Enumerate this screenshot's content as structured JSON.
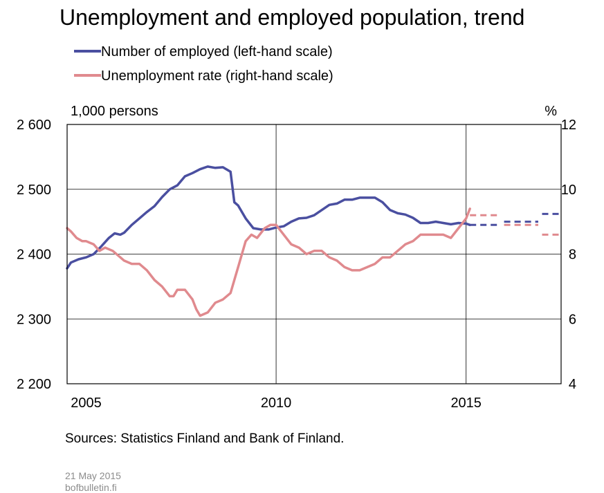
{
  "chart_data": {
    "type": "line",
    "title": "Unemployment and employed population, trend",
    "left_axis": {
      "unit": "1,000 persons",
      "ylim": [
        2200,
        2600
      ],
      "ticks": [
        "2 200",
        "2 300",
        "2 400",
        "2 500",
        "2 600"
      ],
      "tick_values": [
        2200,
        2300,
        2400,
        2500,
        2600
      ]
    },
    "right_axis": {
      "unit": "%",
      "ylim": [
        4,
        12
      ],
      "ticks": [
        "4",
        "6",
        "8",
        "10",
        "12"
      ],
      "tick_values": [
        4,
        6,
        8,
        10,
        12
      ]
    },
    "x_axis": {
      "range": [
        2004.5,
        2017.5
      ],
      "tick_labels": [
        "2005",
        "2010",
        "2015"
      ],
      "tick_values": [
        2005,
        2010,
        2015
      ],
      "gridlines_at": [
        2010,
        2015
      ]
    },
    "grid": true,
    "legend_placement": "top-left",
    "series": [
      {
        "name": "Number of employed (left-hand scale)",
        "axis": "left",
        "color": "#4a4fa0",
        "points": [
          [
            2004.5,
            2378
          ],
          [
            2004.6,
            2387
          ],
          [
            2004.8,
            2392
          ],
          [
            2005.0,
            2395
          ],
          [
            2005.2,
            2400
          ],
          [
            2005.4,
            2412
          ],
          [
            2005.6,
            2425
          ],
          [
            2005.75,
            2432
          ],
          [
            2005.9,
            2430
          ],
          [
            2006.0,
            2433
          ],
          [
            2006.2,
            2445
          ],
          [
            2006.4,
            2455
          ],
          [
            2006.6,
            2465
          ],
          [
            2006.8,
            2474
          ],
          [
            2007.0,
            2488
          ],
          [
            2007.2,
            2500
          ],
          [
            2007.4,
            2506
          ],
          [
            2007.6,
            2520
          ],
          [
            2007.8,
            2525
          ],
          [
            2008.0,
            2531
          ],
          [
            2008.2,
            2535
          ],
          [
            2008.4,
            2533
          ],
          [
            2008.6,
            2534
          ],
          [
            2008.8,
            2527
          ],
          [
            2008.9,
            2480
          ],
          [
            2009.0,
            2475
          ],
          [
            2009.2,
            2455
          ],
          [
            2009.4,
            2440
          ],
          [
            2009.6,
            2438
          ],
          [
            2009.8,
            2438
          ],
          [
            2010.0,
            2441
          ],
          [
            2010.2,
            2443
          ],
          [
            2010.4,
            2450
          ],
          [
            2010.6,
            2455
          ],
          [
            2010.8,
            2456
          ],
          [
            2011.0,
            2460
          ],
          [
            2011.2,
            2468
          ],
          [
            2011.4,
            2476
          ],
          [
            2011.6,
            2478
          ],
          [
            2011.8,
            2484
          ],
          [
            2012.0,
            2484
          ],
          [
            2012.2,
            2487
          ],
          [
            2012.4,
            2487
          ],
          [
            2012.6,
            2487
          ],
          [
            2012.8,
            2480
          ],
          [
            2013.0,
            2468
          ],
          [
            2013.2,
            2463
          ],
          [
            2013.4,
            2461
          ],
          [
            2013.6,
            2456
          ],
          [
            2013.8,
            2448
          ],
          [
            2014.0,
            2448
          ],
          [
            2014.2,
            2450
          ],
          [
            2014.4,
            2448
          ],
          [
            2014.6,
            2446
          ],
          [
            2014.8,
            2448
          ],
          [
            2015.0,
            2447
          ],
          [
            2015.1,
            2445
          ]
        ],
        "forecast": [
          {
            "points": [
              [
                2015.1,
                2445
              ],
              [
                2015.9,
                2445
              ]
            ]
          },
          {
            "points": [
              [
                2016.0,
                2450
              ],
              [
                2016.9,
                2450
              ]
            ]
          },
          {
            "points": [
              [
                2017.0,
                2462
              ],
              [
                2017.5,
                2462
              ]
            ]
          }
        ]
      },
      {
        "name": "Unemployment rate (right-hand scale)",
        "axis": "right",
        "color": "#e08a8e",
        "points": [
          [
            2004.5,
            8.8
          ],
          [
            2004.6,
            8.7
          ],
          [
            2004.75,
            8.5
          ],
          [
            2004.9,
            8.4
          ],
          [
            2005.0,
            8.4
          ],
          [
            2005.2,
            8.3
          ],
          [
            2005.35,
            8.1
          ],
          [
            2005.5,
            8.2
          ],
          [
            2005.7,
            8.1
          ],
          [
            2005.9,
            7.9
          ],
          [
            2006.0,
            7.8
          ],
          [
            2006.2,
            7.7
          ],
          [
            2006.4,
            7.7
          ],
          [
            2006.6,
            7.5
          ],
          [
            2006.8,
            7.2
          ],
          [
            2007.0,
            7.0
          ],
          [
            2007.2,
            6.7
          ],
          [
            2007.3,
            6.7
          ],
          [
            2007.4,
            6.9
          ],
          [
            2007.6,
            6.9
          ],
          [
            2007.8,
            6.6
          ],
          [
            2007.9,
            6.3
          ],
          [
            2008.0,
            6.1
          ],
          [
            2008.2,
            6.2
          ],
          [
            2008.4,
            6.5
          ],
          [
            2008.6,
            6.6
          ],
          [
            2008.8,
            6.8
          ],
          [
            2008.9,
            7.2
          ],
          [
            2009.0,
            7.6
          ],
          [
            2009.2,
            8.4
          ],
          [
            2009.35,
            8.6
          ],
          [
            2009.5,
            8.5
          ],
          [
            2009.7,
            8.8
          ],
          [
            2009.85,
            8.9
          ],
          [
            2010.0,
            8.9
          ],
          [
            2010.2,
            8.6
          ],
          [
            2010.4,
            8.3
          ],
          [
            2010.6,
            8.2
          ],
          [
            2010.8,
            8.0
          ],
          [
            2011.0,
            8.1
          ],
          [
            2011.2,
            8.1
          ],
          [
            2011.4,
            7.9
          ],
          [
            2011.6,
            7.8
          ],
          [
            2011.8,
            7.6
          ],
          [
            2012.0,
            7.5
          ],
          [
            2012.2,
            7.5
          ],
          [
            2012.4,
            7.6
          ],
          [
            2012.6,
            7.7
          ],
          [
            2012.8,
            7.9
          ],
          [
            2013.0,
            7.9
          ],
          [
            2013.2,
            8.1
          ],
          [
            2013.4,
            8.3
          ],
          [
            2013.6,
            8.4
          ],
          [
            2013.8,
            8.6
          ],
          [
            2014.0,
            8.6
          ],
          [
            2014.2,
            8.6
          ],
          [
            2014.4,
            8.6
          ],
          [
            2014.6,
            8.5
          ],
          [
            2014.8,
            8.8
          ],
          [
            2015.0,
            9.1
          ],
          [
            2015.1,
            9.4
          ]
        ],
        "forecast": [
          {
            "points": [
              [
                2015.1,
                9.2
              ],
              [
                2015.9,
                9.2
              ]
            ]
          },
          {
            "points": [
              [
                2016.0,
                8.9
              ],
              [
                2016.9,
                8.9
              ]
            ]
          },
          {
            "points": [
              [
                2017.0,
                8.6
              ],
              [
                2017.5,
                8.6
              ]
            ]
          }
        ]
      }
    ]
  },
  "source": "Sources: Statistics Finland and Bank of Finland.",
  "footer": {
    "date": "21 May 2015",
    "site": "bofbulletin.fi"
  }
}
